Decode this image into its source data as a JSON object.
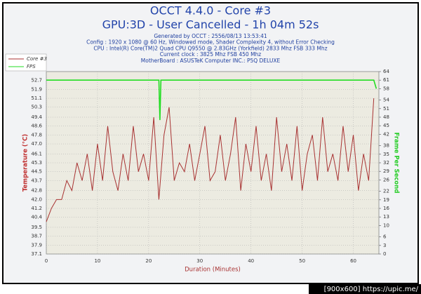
{
  "chart_data": {
    "type": "line",
    "title": "OCCT 4.4.0 - Core #3",
    "subtitle": "GPU:3D - User Cancelled - 1h 04m 52s",
    "info": [
      "Generated by OCCT : 2556/08/13 13:53:41",
      "Config : 1920 x 1080 @ 60 Hz, Windowed mode, Shader Complexity 4, without Error Checking",
      "CPU : Intel(R) Core(TM)2 Quad CPU Q9550 @ 2.83GHz (Yorkfield) 2833 Mhz FSB 333 Mhz",
      "Current clock : 3825 Mhz FSB 450 Mhz",
      "MotherBoard : ASUSTeK Computer INC.: P5Q DELUXE"
    ],
    "xlabel": "Duration (Minutes)",
    "ylabel": "Temperature (°C)",
    "y2label": "Frame Per Second",
    "footer": "[900x600] https://upic.me/",
    "xlim": [
      0,
      65
    ],
    "xticks": [
      0,
      10,
      20,
      30,
      40,
      50,
      60
    ],
    "ylim": [
      37.1,
      53.5
    ],
    "yticks": [
      37.1,
      37.9,
      38.7,
      39.5,
      40.4,
      41.2,
      {
        "value": 42,
        "label": "42.0"
      },
      42.8,
      43.7,
      44.5,
      45.3,
      46.1,
      {
        "value": 47,
        "label": "47.0"
      },
      47.8,
      48.6,
      49.4,
      50.3,
      51.1,
      51.9,
      52.7
    ],
    "y2lim": [
      0,
      64
    ],
    "y2ticks": [
      0,
      3,
      6,
      10,
      13,
      16,
      19,
      22,
      26,
      29,
      32,
      35,
      38,
      42,
      45,
      48,
      51,
      54,
      58,
      61,
      64
    ],
    "grid": true,
    "legend": "top-left",
    "series": [
      {
        "name": "Core #3",
        "color": "#a83232",
        "x": [
          0,
          1,
          2,
          3,
          4,
          5,
          6,
          7,
          8,
          9,
          10,
          11,
          12,
          13,
          14,
          15,
          16,
          17,
          18,
          19,
          20,
          21,
          22,
          23,
          24,
          25,
          26,
          27,
          28,
          29,
          30,
          31,
          32,
          33,
          34,
          35,
          36,
          37,
          38,
          39,
          40,
          41,
          42,
          43,
          44,
          45,
          46,
          47,
          48,
          49,
          50,
          51,
          52,
          53,
          54,
          55,
          56,
          57,
          58,
          59,
          60,
          61,
          62,
          63,
          64
        ],
        "values": [
          40.0,
          41.2,
          42.0,
          42.0,
          43.7,
          42.8,
          45.3,
          43.7,
          46.1,
          42.8,
          47.0,
          43.7,
          48.6,
          44.5,
          42.8,
          46.1,
          43.7,
          48.6,
          44.5,
          46.1,
          43.7,
          49.4,
          42.0,
          47.8,
          50.3,
          43.7,
          45.3,
          44.5,
          47.0,
          43.7,
          46.1,
          48.6,
          43.7,
          44.5,
          47.8,
          43.7,
          46.1,
          49.4,
          42.8,
          47.0,
          44.5,
          48.6,
          43.7,
          46.1,
          42.8,
          49.4,
          44.5,
          47.0,
          43.7,
          48.6,
          42.8,
          46.1,
          47.8,
          43.7,
          49.4,
          44.5,
          46.1,
          43.7,
          48.6,
          44.5,
          47.8,
          42.8,
          46.1,
          43.7,
          51.1
        ]
      },
      {
        "name": "FPS",
        "color": "#22dd22",
        "axis": "y2",
        "x": [
          0,
          22,
          22.2,
          22.4,
          64,
          64.5
        ],
        "values": [
          61,
          61,
          47,
          61,
          61,
          58
        ]
      }
    ]
  }
}
